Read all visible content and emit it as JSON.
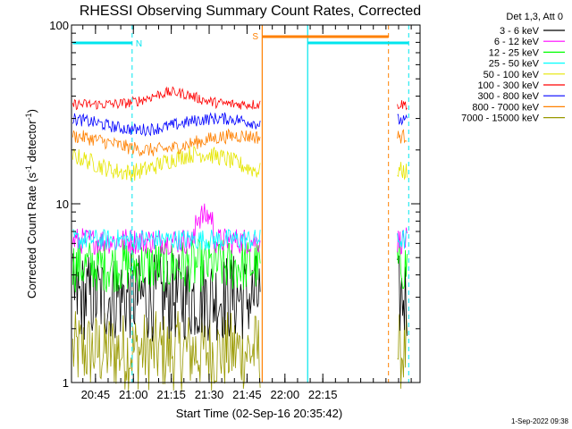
{
  "chart_data": {
    "type": "line",
    "title": "RHESSI Observing Summary Count Rates, Corrected",
    "xlabel": "Start Time (02-Sep-16 20:35:42)",
    "ylabel_parts": [
      "Corrected Count Rate (s",
      "-1",
      " detector",
      "-1",
      ")"
    ],
    "yscale": "log",
    "ylim": [
      1,
      100
    ],
    "y_ticks": [
      {
        "value": 1,
        "label": "1"
      },
      {
        "value": 10,
        "label": "10"
      },
      {
        "value": 100,
        "label": "100"
      }
    ],
    "xlim_minutes": [
      20.0,
      158.0
    ],
    "x_ticks": [
      {
        "minutes": 29.5,
        "label": "20:45"
      },
      {
        "minutes": 44.5,
        "label": "21:00"
      },
      {
        "minutes": 59.5,
        "label": "21:15"
      },
      {
        "minutes": 74.5,
        "label": "21:30"
      },
      {
        "minutes": 89.5,
        "label": "21:45"
      },
      {
        "minutes": 104.5,
        "label": "22:00"
      },
      {
        "minutes": 119.5,
        "label": "22:15"
      }
    ],
    "legend_header": "Det 1,3, Att 0",
    "series": [
      {
        "name": "3 - 6 keV",
        "color": "#000000"
      },
      {
        "name": "6 - 12 keV",
        "color": "#ff00ff"
      },
      {
        "name": "12 - 25 keV",
        "color": "#00ff00"
      },
      {
        "name": "25 - 50 keV",
        "color": "#00ffff"
      },
      {
        "name": "50 - 100 keV",
        "color": "#e6e600"
      },
      {
        "name": "100 - 300 keV",
        "color": "#ff0000"
      },
      {
        "name": "300 - 800 keV",
        "color": "#0000ff"
      },
      {
        "name": "800 - 7000 keV",
        "color": "#ff8000"
      },
      {
        "name": "7000 - 15000 keV",
        "color": "#999900"
      }
    ],
    "flags": [
      {
        "label": "N",
        "color": "#00e5ee"
      },
      {
        "label": "S",
        "color": "#ff8000"
      }
    ],
    "timestamp": "1-Sep-2022 09:38"
  }
}
